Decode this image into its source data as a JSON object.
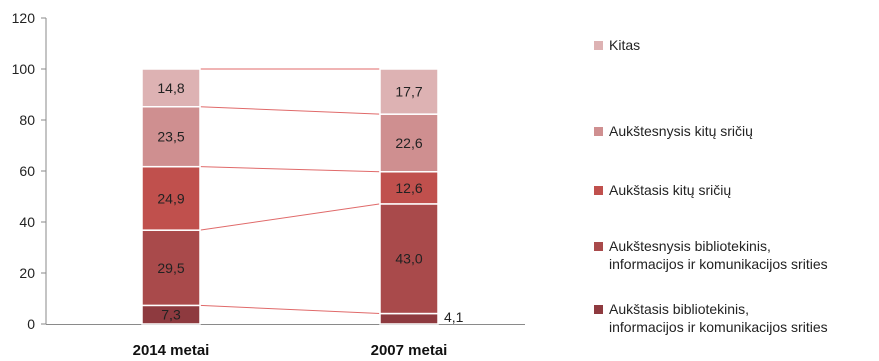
{
  "chart_data": {
    "type": "bar",
    "stacked": true,
    "categories": [
      "2014 metai",
      "2007 metai"
    ],
    "series": [
      {
        "name": "Aukštasis bibliotekinis,\ninformacijos ir komunikacijos srities",
        "values": [
          7.3,
          4.1
        ],
        "color": "#8E3A3F"
      },
      {
        "name": "Aukštesnysis bibliotekinis,\ninformacijos ir komunikacijos srities",
        "values": [
          29.5,
          43.0
        ],
        "color": "#A94A4B"
      },
      {
        "name": "Aukštasis kitų sričių",
        "values": [
          24.9,
          12.6
        ],
        "color": "#C0504D"
      },
      {
        "name": "Aukštesnysis kitų sričių",
        "values": [
          23.5,
          22.6
        ],
        "color": "#CF8F90"
      },
      {
        "name": "Kitas",
        "values": [
          14.8,
          17.7
        ],
        "color": "#DDB2B3"
      }
    ],
    "value_labels": [
      [
        "7,3",
        "4,1"
      ],
      [
        "29,5",
        "43,0"
      ],
      [
        "24,9",
        "12,6"
      ],
      [
        "23,5",
        "22,6"
      ],
      [
        "14,8",
        "17,7"
      ]
    ],
    "ylim": [
      0,
      120
    ],
    "yticks": [
      0,
      20,
      40,
      60,
      80,
      100,
      120
    ],
    "grid": false,
    "legend_position": "right",
    "connector_color": "#E06A6A"
  }
}
